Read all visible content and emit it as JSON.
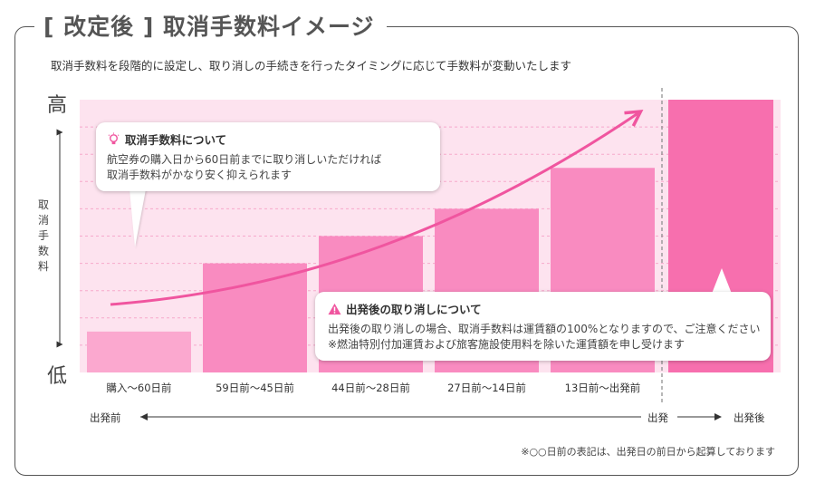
{
  "title": "[ 改定後 ] 取消手数料イメージ",
  "subtitle": "取消手数料を段階的に設定し、取り消しの手続きを行ったタイミングに応じて手数料が変動いたします",
  "y_axis": {
    "high": "高",
    "low": "低",
    "label": "取消手数料"
  },
  "timeline": {
    "start": "出発前",
    "departure": "出発",
    "after": "出発後"
  },
  "callout_before": {
    "icon": "lightbulb-icon",
    "title": "取消手数料について",
    "line1": "航空券の購入日から60日前までに取り消しいただければ",
    "line2": "取消手数料がかなり安く抑えられます"
  },
  "callout_after": {
    "icon": "warning-icon",
    "title": "出発後の取り消しについて",
    "line1": "出発後の取り消しの場合、取消手数料は運賃額の100%となりますので、ご注意ください",
    "line2": "※燃油特別付加運賃および旅客施設使用料を除いた運賃額を申し受けます"
  },
  "footnote": "※○○日前の表記は、出発日の前日から起算しております",
  "colors": {
    "bar_light": "#fba8cf",
    "bar_mid": "#f98bc0",
    "bar_after": "#f76fae",
    "plot_bg": "#fde3ef",
    "arrow": "#f0559f"
  },
  "chart_data": {
    "type": "bar",
    "title": "",
    "categories": [
      "購入～60日前",
      "59日前～45日前",
      "44日前～28日前",
      "27日前～14日前",
      "13日前～出発前",
      ""
    ],
    "values": [
      15,
      40,
      50,
      60,
      75,
      100
    ],
    "ylim": [
      0,
      100
    ],
    "grid": true,
    "trend_arrow": true,
    "ylabel": "取消手数料"
  }
}
